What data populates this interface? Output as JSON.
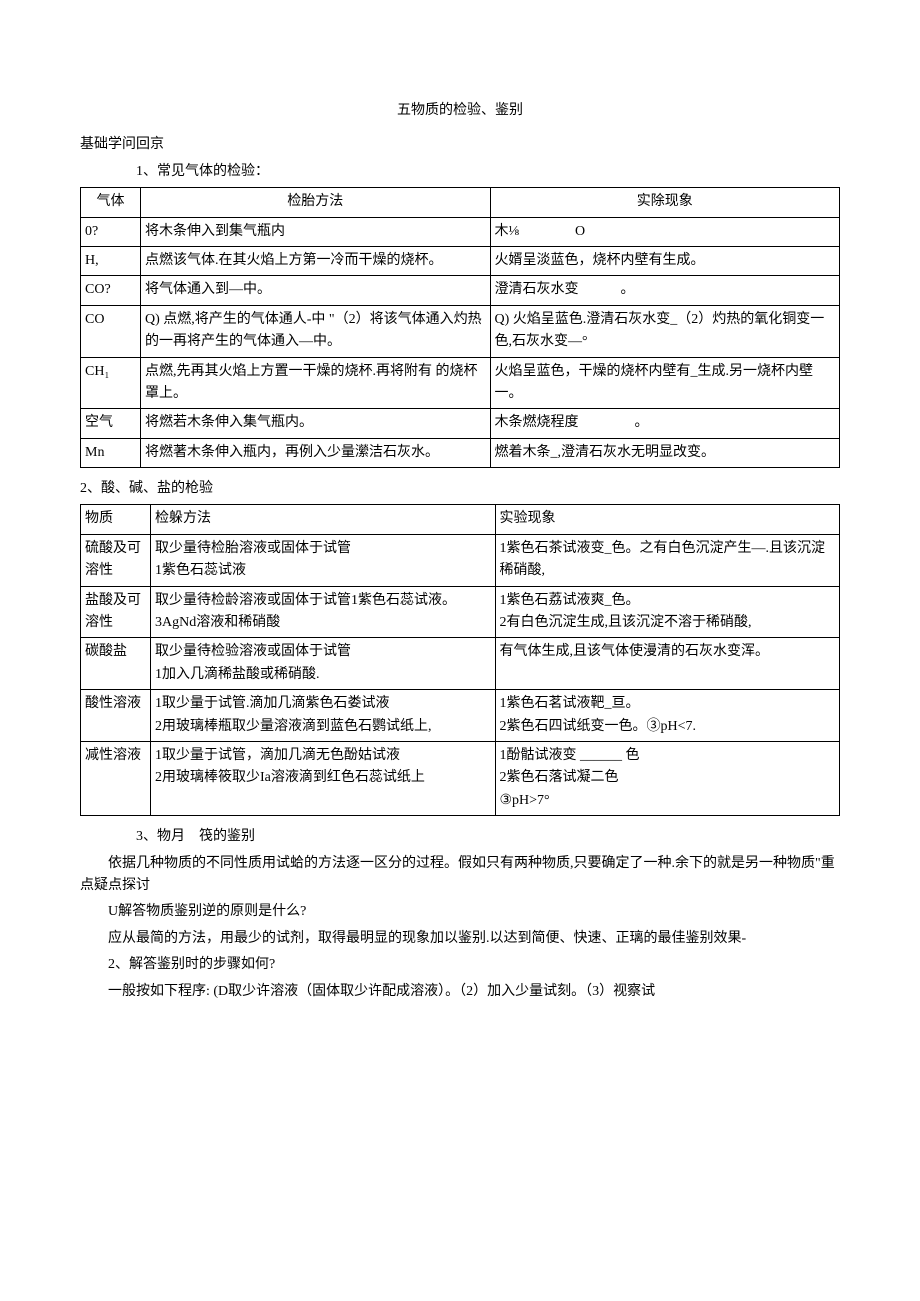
{
  "title": "五物质的检验、鉴别",
  "section1": "基础学问回京",
  "sub1": "1、常见气体的检验：",
  "table1": {
    "headers": [
      "气体",
      "检胎方法",
      "实除现象"
    ],
    "rows": [
      [
        "0?",
        "将木条伸入到集气瓶内",
        "木⅛　　　　O"
      ],
      [
        "H,",
        "点燃该气体.在其火焰上方第一冷而干燥的烧杯。",
        "火婿呈淡蓝色，烧杯内壁有生成。"
      ],
      [
        "CO?",
        "将气体通入到—中。",
        "澄清石灰水变　　　。"
      ],
      [
        "CO",
        "Q)  点燃,将产生的气体通人-中 \"（2）将该气体通入灼热的一再将产生的气体通入—中。",
        "Q)  火焰呈蓝色.澄清石灰水变_（2）灼热的氧化铜变一色,石灰水变—°"
      ],
      [
        "CH₁",
        "点燃,先再其火焰上方置一干燥的烧杯.再将附有 的烧杯罩上。",
        "火焰呈蓝色，干燥的烧杯内壁有_生成.另一烧杯内壁一。"
      ],
      [
        "空气",
        "将燃若木条伸入集气瓶内。",
        "木条燃烧程度　　　　。"
      ],
      [
        "Mn",
        "将燃著木条伸入瓶内，再例入少量瀠洁石灰水。",
        "燃着木条_,澄清石灰水无明显改变。"
      ]
    ]
  },
  "sub2": "2、酸、碱、盐的枪验",
  "table2": {
    "headers": [
      "物质",
      "检躲方法",
      "实验现象"
    ],
    "rows": [
      [
        "硫酸及可溶性",
        "取少量待检胎溶液或固体于试管\n1紫色石蕊试液",
        "1紫色石茶试液变_色。之有白色沉淀产生—.且该沉淀稀硝酸,"
      ],
      [
        "盐酸及可溶性",
        "取少量待检龄溶液或固体于试管1紫色石蕊试液。\n3AgNd溶液和稀硝酸",
        "1紫色石荔试液爽_色。\n2有白色沉淀生成,且该沉淀不溶于稀硝酸,"
      ],
      [
        "碳酸盐",
        "取少量待检验溶液或固体于试管\n1加入几滴稀盐酸或稀硝酸.",
        "有气体生成,且该气体使漫清的石灰水变浑。"
      ],
      [
        "酸性溶液",
        "1取少量于试管.滴加几滴紫色石娄试液\n2用玻璃棒瓶取少量溶液滴到蓝色石鹦试纸上,",
        "1紫色石茗试液靶_亘。\n2紫色石四试纸变一色。③pH<7."
      ],
      [
        "减性溶液",
        "1取少量于试管，滴加几滴无色酚姑试液\n2用玻璃棒筱取少Ia溶液滴到红色石蕊试纸上",
        "1酚骷试液变 ______ 色\n2紫色石落试凝二色\n③pH>7°"
      ]
    ]
  },
  "sub3": "3、物月　筏的鉴别",
  "p1": "依据几种物质的不同性质用试蛤的方法逐一区分的过程。假如只有两种物质,只要确定了一种.余下的就是另一种物质\"重点疑点探讨",
  "p2": "U解答物质鉴别逆的原则是什么?",
  "p3": "应从最简的方法，用最少的试剂，取得最明显的现象加以鉴别.以达到简便、快速、正璃的最佳鉴别效果-",
  "p4": "2、解答鉴别时的步骤如何?",
  "p5": "一般按如下程序: (D取少许溶液（固体取少许配成溶液）。（2）加入少量试刻。（3）视察试"
}
